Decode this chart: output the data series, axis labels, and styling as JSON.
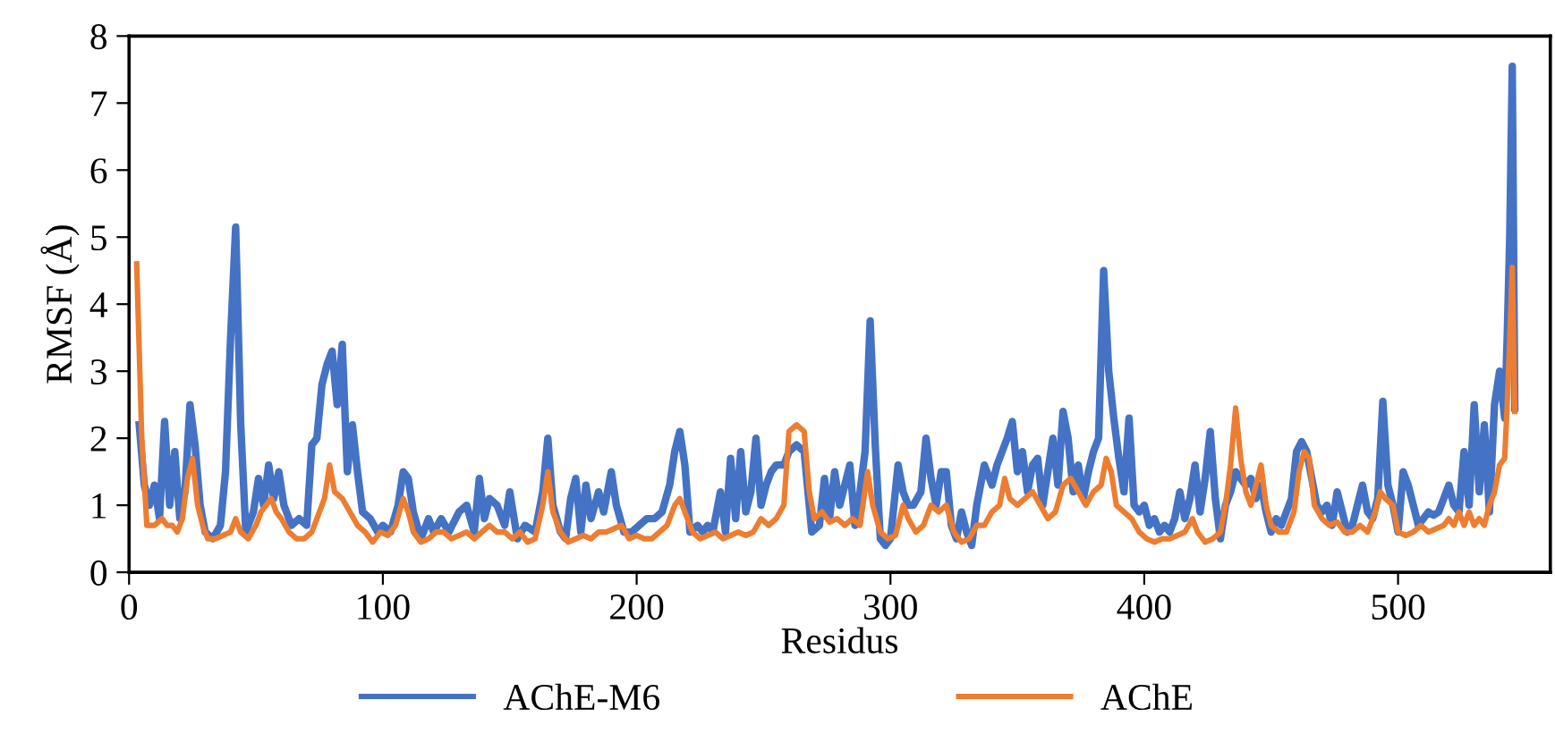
{
  "chart_data": {
    "type": "line",
    "xlabel": "Residus",
    "ylabel": "RMSF (Å)",
    "xlim": [
      0,
      560
    ],
    "xticks": [
      0,
      100,
      200,
      300,
      400,
      500
    ],
    "ylim": [
      0,
      8
    ],
    "yticks": [
      0,
      1,
      2,
      3,
      4,
      5,
      6,
      7,
      8
    ],
    "grid": false,
    "legend": "bottom",
    "marker": "none",
    "line_style": "solid",
    "series": [
      {
        "name": "AChE-M6",
        "color": "#4472c4",
        "x": [
          4,
          6,
          8,
          10,
          12,
          14,
          16,
          18,
          20,
          22,
          24,
          26,
          28,
          30,
          33,
          36,
          38,
          40,
          42,
          44,
          46,
          49,
          51,
          53,
          55,
          57,
          59,
          61,
          64,
          67,
          70,
          72,
          74,
          76,
          78,
          80,
          82,
          84,
          86,
          88,
          90,
          92,
          95,
          98,
          100,
          103,
          106,
          108,
          110,
          112,
          115,
          118,
          120,
          123,
          126,
          130,
          133,
          136,
          138,
          140,
          142,
          145,
          148,
          150,
          153,
          156,
          160,
          163,
          165,
          167,
          170,
          172,
          174,
          176,
          178,
          180,
          182,
          185,
          187,
          190,
          192,
          195,
          198,
          201,
          204,
          207,
          210,
          213,
          215,
          217,
          219,
          221,
          224,
          226,
          228,
          230,
          233,
          235,
          237,
          239,
          241,
          243,
          245,
          247,
          249,
          251,
          253,
          255,
          258,
          260,
          263,
          266,
          269,
          272,
          274,
          276,
          278,
          280,
          282,
          284,
          286,
          288,
          290,
          292,
          294,
          296,
          298,
          300,
          303,
          305,
          307,
          309,
          312,
          314,
          316,
          318,
          320,
          322,
          324,
          326,
          328,
          330,
          332,
          334,
          337,
          340,
          342,
          344,
          346,
          348,
          350,
          352,
          354,
          356,
          358,
          360,
          362,
          364,
          366,
          368,
          370,
          372,
          374,
          376,
          378,
          380,
          382,
          384,
          386,
          388,
          390,
          392,
          394,
          396,
          398,
          400,
          402,
          404,
          406,
          408,
          410,
          412,
          414,
          416,
          418,
          420,
          422,
          424,
          426,
          428,
          430,
          432,
          434,
          436,
          438,
          440,
          442,
          444,
          446,
          448,
          450,
          452,
          454,
          456,
          458,
          460,
          462,
          464,
          466,
          468,
          470,
          472,
          474,
          476,
          478,
          480,
          482,
          484,
          486,
          488,
          490,
          492,
          494,
          496,
          498,
          500,
          502,
          504,
          506,
          508,
          510,
          512,
          514,
          516,
          518,
          520,
          522,
          524,
          526,
          528,
          530,
          532,
          534,
          536,
          538,
          540,
          542,
          543,
          544,
          545,
          546
        ],
        "values": [
          2.2,
          1.3,
          1.0,
          1.3,
          0.8,
          2.25,
          1.0,
          1.8,
          0.8,
          1.2,
          2.5,
          1.9,
          1.0,
          0.6,
          0.5,
          0.7,
          1.5,
          3.5,
          5.15,
          2.2,
          0.6,
          0.9,
          1.4,
          1.0,
          1.6,
          1.1,
          1.5,
          1.0,
          0.7,
          0.8,
          0.7,
          1.9,
          2.0,
          2.8,
          3.1,
          3.3,
          2.5,
          3.4,
          1.5,
          2.2,
          1.5,
          0.9,
          0.8,
          0.6,
          0.7,
          0.6,
          1.0,
          1.5,
          1.4,
          0.9,
          0.5,
          0.8,
          0.6,
          0.8,
          0.6,
          0.9,
          1.0,
          0.6,
          1.4,
          0.8,
          1.1,
          1.0,
          0.7,
          1.2,
          0.5,
          0.7,
          0.6,
          1.2,
          2.0,
          1.0,
          0.6,
          0.5,
          1.1,
          1.4,
          0.6,
          1.3,
          0.8,
          1.2,
          0.9,
          1.5,
          1.0,
          0.6,
          0.6,
          0.7,
          0.8,
          0.8,
          0.9,
          1.3,
          1.8,
          2.1,
          1.6,
          0.6,
          0.7,
          0.6,
          0.7,
          0.6,
          1.2,
          0.6,
          1.7,
          0.8,
          1.8,
          0.9,
          1.2,
          2.0,
          1.0,
          1.3,
          1.5,
          1.6,
          1.6,
          1.8,
          1.9,
          1.8,
          0.6,
          0.7,
          1.4,
          0.8,
          1.5,
          1.0,
          1.3,
          1.6,
          0.7,
          1.2,
          1.8,
          3.75,
          1.9,
          0.5,
          0.4,
          0.5,
          1.6,
          1.2,
          1.0,
          1.0,
          1.2,
          2.0,
          1.4,
          1.0,
          1.5,
          1.5,
          0.7,
          0.5,
          0.9,
          0.6,
          0.4,
          1.0,
          1.6,
          1.3,
          1.6,
          1.8,
          2.0,
          2.25,
          1.5,
          1.8,
          1.2,
          1.6,
          1.7,
          1.0,
          1.5,
          2.0,
          1.3,
          2.4,
          2.0,
          1.2,
          1.6,
          1.1,
          1.5,
          1.8,
          2.0,
          4.5,
          3.0,
          2.3,
          1.7,
          1.2,
          2.3,
          1.0,
          0.9,
          1.0,
          0.7,
          0.8,
          0.6,
          0.7,
          0.6,
          0.8,
          1.2,
          0.8,
          1.1,
          1.6,
          0.9,
          1.4,
          2.1,
          1.1,
          0.5,
          1.0,
          1.2,
          1.5,
          1.4,
          1.3,
          1.4,
          1.1,
          1.3,
          0.9,
          0.6,
          0.8,
          0.7,
          0.9,
          1.1,
          1.8,
          1.95,
          1.8,
          1.4,
          1.0,
          0.9,
          1.0,
          0.7,
          1.2,
          0.9,
          0.6,
          0.7,
          1.0,
          1.3,
          0.9,
          0.8,
          1.1,
          2.55,
          1.3,
          1.0,
          0.6,
          1.5,
          1.3,
          1.0,
          0.7,
          0.8,
          0.9,
          0.85,
          0.9,
          1.1,
          1.3,
          1.0,
          0.9,
          1.8,
          1.0,
          2.5,
          1.2,
          2.2,
          0.9,
          2.5,
          3.0,
          2.3,
          3.5,
          5.0,
          7.55,
          2.45
        ]
      },
      {
        "name": "AChE",
        "color": "#ed7d31",
        "x": [
          3,
          5,
          7,
          10,
          13,
          15,
          17,
          19,
          21,
          23,
          25,
          27,
          29,
          31,
          34,
          37,
          40,
          42,
          44,
          47,
          50,
          52,
          54,
          56,
          58,
          60,
          63,
          66,
          69,
          72,
          75,
          77,
          79,
          81,
          84,
          87,
          90,
          93,
          96,
          99,
          102,
          105,
          108,
          110,
          112,
          115,
          118,
          121,
          124,
          127,
          130,
          133,
          136,
          139,
          142,
          145,
          148,
          151,
          154,
          157,
          160,
          163,
          165,
          167,
          170,
          173,
          176,
          179,
          182,
          185,
          188,
          191,
          194,
          197,
          200,
          203,
          206,
          209,
          212,
          215,
          217,
          219,
          222,
          225,
          228,
          231,
          234,
          237,
          240,
          243,
          246,
          249,
          252,
          255,
          258,
          260,
          263,
          266,
          268,
          270,
          273,
          276,
          279,
          282,
          285,
          288,
          291,
          293,
          296,
          299,
          302,
          305,
          307,
          310,
          313,
          316,
          319,
          322,
          325,
          328,
          331,
          334,
          337,
          340,
          343,
          345,
          347,
          350,
          353,
          356,
          359,
          362,
          365,
          368,
          371,
          374,
          377,
          380,
          383,
          385,
          387,
          389,
          392,
          395,
          398,
          401,
          404,
          407,
          410,
          413,
          416,
          419,
          421,
          424,
          427,
          430,
          432,
          434,
          436,
          438,
          440,
          442,
          444,
          446,
          448,
          450,
          453,
          456,
          459,
          461,
          463,
          465,
          467,
          470,
          473,
          476,
          479,
          482,
          485,
          488,
          491,
          493,
          495,
          498,
          500,
          503,
          506,
          509,
          512,
          515,
          518,
          520,
          522,
          524,
          526,
          528,
          530,
          532,
          534,
          536,
          538,
          540,
          542,
          543,
          544,
          545,
          546
        ],
        "values": [
          4.6,
          2.0,
          0.7,
          0.7,
          0.8,
          0.7,
          0.7,
          0.6,
          0.8,
          1.4,
          1.7,
          1.0,
          0.7,
          0.5,
          0.5,
          0.55,
          0.6,
          0.8,
          0.6,
          0.5,
          0.7,
          0.9,
          1.0,
          1.1,
          0.9,
          0.8,
          0.6,
          0.5,
          0.5,
          0.6,
          0.9,
          1.1,
          1.6,
          1.2,
          1.1,
          0.9,
          0.7,
          0.6,
          0.45,
          0.6,
          0.55,
          0.7,
          1.1,
          0.9,
          0.6,
          0.45,
          0.5,
          0.6,
          0.6,
          0.5,
          0.55,
          0.6,
          0.5,
          0.6,
          0.7,
          0.6,
          0.6,
          0.5,
          0.6,
          0.45,
          0.5,
          1.0,
          1.5,
          0.9,
          0.6,
          0.45,
          0.5,
          0.55,
          0.5,
          0.6,
          0.6,
          0.65,
          0.7,
          0.5,
          0.55,
          0.5,
          0.5,
          0.6,
          0.7,
          1.0,
          1.1,
          0.9,
          0.6,
          0.5,
          0.55,
          0.6,
          0.5,
          0.55,
          0.6,
          0.55,
          0.6,
          0.8,
          0.7,
          0.8,
          1.0,
          2.1,
          2.2,
          2.1,
          1.2,
          0.8,
          0.9,
          0.75,
          0.8,
          0.7,
          0.8,
          0.7,
          1.5,
          1.0,
          0.6,
          0.5,
          0.55,
          1.0,
          0.8,
          0.6,
          0.7,
          1.0,
          0.9,
          1.0,
          0.6,
          0.45,
          0.5,
          0.7,
          0.7,
          0.9,
          1.0,
          1.4,
          1.1,
          1.0,
          1.1,
          1.2,
          1.0,
          0.8,
          0.9,
          1.3,
          1.4,
          1.2,
          1.0,
          1.2,
          1.3,
          1.7,
          1.5,
          1.0,
          0.9,
          0.8,
          0.6,
          0.5,
          0.45,
          0.5,
          0.5,
          0.55,
          0.6,
          0.8,
          0.6,
          0.45,
          0.5,
          0.6,
          1.0,
          1.6,
          2.45,
          1.7,
          1.2,
          1.0,
          1.3,
          1.6,
          1.0,
          0.7,
          0.6,
          0.6,
          0.9,
          1.5,
          1.8,
          1.7,
          1.0,
          0.8,
          0.7,
          0.75,
          0.6,
          0.6,
          0.7,
          0.6,
          0.9,
          1.2,
          1.1,
          1.0,
          0.6,
          0.55,
          0.6,
          0.7,
          0.6,
          0.65,
          0.7,
          0.8,
          0.7,
          0.9,
          0.7,
          0.9,
          0.7,
          0.8,
          0.7,
          1.0,
          1.2,
          1.6,
          1.7,
          2.5,
          3.5,
          4.55,
          2.4
        ]
      }
    ]
  }
}
